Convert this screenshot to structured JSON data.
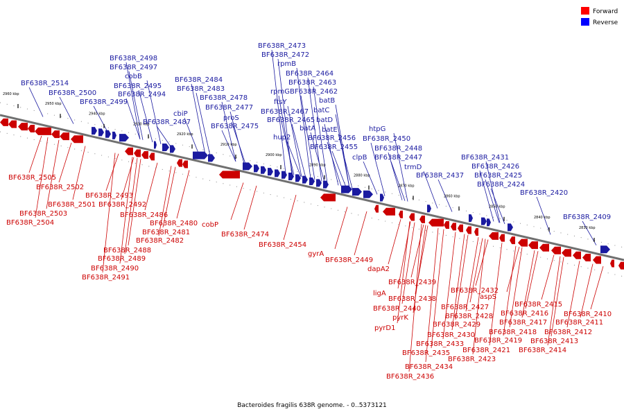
{
  "caption": "Bacteroides fragilis 638R genome. - 0..5373121",
  "legend": [
    {
      "label": "Forward",
      "color": "#ff0000"
    },
    {
      "label": "Reverse",
      "color": "#0000ff"
    }
  ],
  "colors": {
    "forward": "#cc0000",
    "reverse": "#1a1aa0",
    "backbone": "#707070"
  },
  "kbp_ticks": [
    "2960 kbp",
    "2950 kbp",
    "2940 kbp",
    "2930 kbp",
    "2920 kbp",
    "2910 kbp",
    "2900 kbp",
    "2890 kbp",
    "2880 kbp",
    "2870 kbp",
    "2860 kbp",
    "2850 kbp",
    "2840 kbp",
    "2830 kbp"
  ],
  "reverse_labels": [
    "BF638R_2514",
    "BF638R_2500",
    "BF638R_2499",
    "BF638R_2498",
    "BF638R_2497",
    "cobB",
    "BF638R_2495",
    "BF638R_2494",
    "cbiP",
    "BF638R_2487",
    "BF638R_2484",
    "BF638R_2483",
    "BF638R_2478",
    "BF638R_2477",
    "proS",
    "BF638R_2475",
    "BF638R_2473",
    "BF638R_2472",
    "rpmB",
    "BF638R_2464",
    "BF638R_2463",
    "rpmG",
    "BF638R_2462",
    "ftsY",
    "batB",
    "BF638R_2467",
    "batC",
    "BF638R_2465",
    "batD",
    "batA",
    "hup2",
    "batE",
    "BF638R_2456",
    "BF638R_2455",
    "htpG",
    "BF638R_2450",
    "clpB",
    "BF638R_2448",
    "BF638R_2447",
    "trmD",
    "BF638R_2437",
    "BF638R_2431",
    "BF638R_2426",
    "BF638R_2425",
    "BF638R_2424",
    "BF638R_2420",
    "BF638R_2409"
  ],
  "forward_labels": [
    "BF638R_2505",
    "BF638R_2502",
    "BF638R_2501",
    "BF638R_2503",
    "BF638R_2504",
    "BF638R_2493",
    "BF638R_2492",
    "BF638R_2486",
    "BF638R_2480",
    "cobP",
    "BF638R_2481",
    "BF638R_2482",
    "BF638R_2488",
    "BF638R_2489",
    "BF638R_2490",
    "BF638R_2491",
    "BF638R_2474",
    "BF638R_2454",
    "gyrA",
    "BF638R_2449",
    "dapA2",
    "BF638R_2439",
    "ligA",
    "BF638R_2438",
    "BF638R_2440",
    "pyrK",
    "pyrD1",
    "BF638R_2432",
    "aspS",
    "BF638R_2427",
    "BF638R_2428",
    "BF638R_2429",
    "BF638R_2430",
    "BF638R_2433",
    "BF638R_2435",
    "BF638R_2434",
    "BF638R_2436",
    "BF638R_2423",
    "BF638R_2421",
    "BF638R_2419",
    "BF638R_2418",
    "BF638R_2417",
    "BF638R_2416",
    "BF638R_2415",
    "BF638R_2414",
    "BF638R_2413",
    "BF638R_2412",
    "BF638R_2411",
    "BF638R_2410"
  ]
}
